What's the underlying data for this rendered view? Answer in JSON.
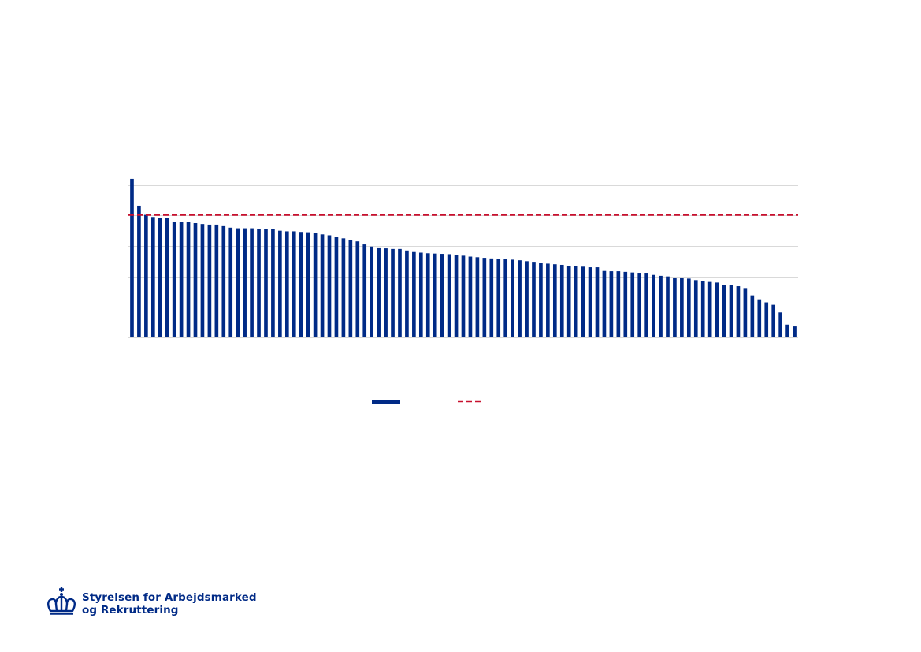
{
  "logo": {
    "line1": "Styrelsen for Arbejdsmarked",
    "line2": "og Rekruttering",
    "icon": "crown-icon"
  },
  "colors": {
    "bar": "#002a86",
    "reference_line": "#c8102e",
    "grid": "#d9d9d9"
  },
  "chart_data": {
    "type": "bar",
    "title": "",
    "xlabel": "",
    "ylabel": "",
    "ylim": [
      0,
      6
    ],
    "grid": true,
    "gridlines": [
      0,
      1,
      2,
      3,
      4,
      5,
      6
    ],
    "legend_placement": "bottom-center",
    "reference_line": 4.02,
    "values": [
      5.2,
      4.32,
      4.02,
      3.95,
      3.93,
      3.93,
      3.8,
      3.79,
      3.79,
      3.75,
      3.72,
      3.7,
      3.7,
      3.65,
      3.6,
      3.58,
      3.58,
      3.58,
      3.56,
      3.56,
      3.56,
      3.5,
      3.48,
      3.48,
      3.46,
      3.45,
      3.43,
      3.38,
      3.35,
      3.3,
      3.25,
      3.2,
      3.15,
      3.05,
      2.98,
      2.95,
      2.92,
      2.9,
      2.9,
      2.85,
      2.8,
      2.78,
      2.76,
      2.75,
      2.74,
      2.73,
      2.7,
      2.68,
      2.65,
      2.63,
      2.61,
      2.59,
      2.57,
      2.56,
      2.55,
      2.53,
      2.5,
      2.48,
      2.44,
      2.42,
      2.4,
      2.38,
      2.35,
      2.33,
      2.32,
      2.3,
      2.3,
      2.18,
      2.17,
      2.17,
      2.15,
      2.13,
      2.12,
      2.12,
      2.05,
      2.02,
      2.0,
      1.96,
      1.95,
      1.93,
      1.88,
      1.86,
      1.82,
      1.8,
      1.72,
      1.72,
      1.68,
      1.62,
      1.38,
      1.25,
      1.15,
      1.07,
      0.82,
      0.42,
      0.36
    ]
  }
}
